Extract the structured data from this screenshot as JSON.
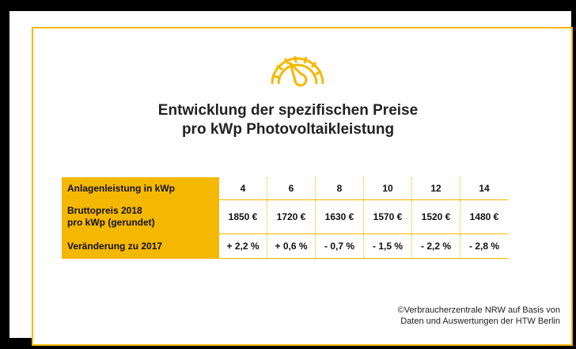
{
  "title": {
    "line1": "Entwicklung der spezifischen Preise",
    "line2": "pro kWp Photovoltaikleistung"
  },
  "gauge_icon": "gauge-icon",
  "accent_color": "#f5b800",
  "table": {
    "rows": [
      {
        "label": "Anlagenleistung in kWp",
        "values": [
          "4",
          "6",
          "8",
          "10",
          "12",
          "14"
        ]
      },
      {
        "label_line1": "Bruttopreis 2018",
        "label_line2": "pro kWp (gerundet)",
        "values": [
          "1850 €",
          "1720 €",
          "1630 €",
          "1570 €",
          "1520 €",
          "1480 €"
        ]
      },
      {
        "label": "Veränderung zu 2017",
        "values": [
          "+ 2,2 %",
          "+ 0,6 %",
          "-  0,7 %",
          "- 1,5 %",
          "- 2,2 %",
          "- 2,8 %"
        ]
      }
    ]
  },
  "credit": {
    "line1": "©Verbraucherzentrale NRW auf Basis von",
    "line2": "Daten und Auswertungen der HTW Berlin"
  }
}
